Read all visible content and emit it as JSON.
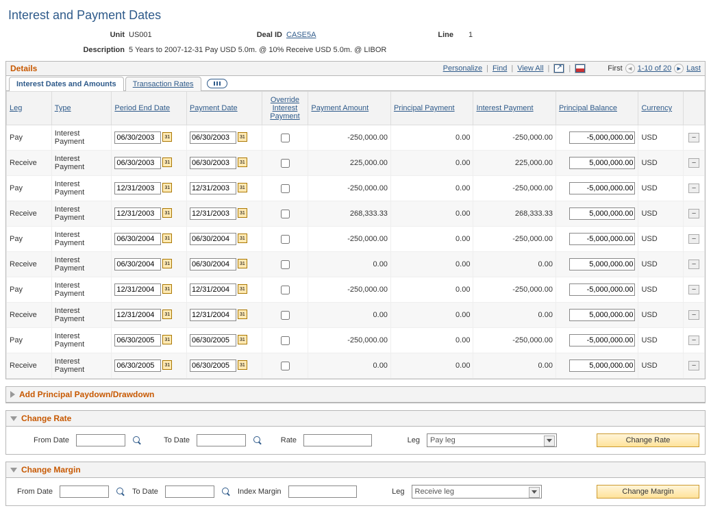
{
  "page": {
    "title": "Interest and Payment Dates"
  },
  "header": {
    "unit_label": "Unit",
    "unit": "US001",
    "deal_label": "Deal ID",
    "deal_id": "CASE5A",
    "line_label": "Line",
    "line": "1",
    "desc_label": "Description",
    "description": "5 Years to 2007-12-31 Pay USD 5.0m. @ 10% Receive USD 5.0m. @ LIBOR"
  },
  "grid": {
    "title": "Details",
    "actions": {
      "personalize": "Personalize",
      "find": "Find",
      "view_all": "View All",
      "first": "First",
      "range": "1-10 of 20",
      "last": "Last"
    },
    "tabs": {
      "t1": "Interest Dates and Amounts",
      "t2": "Transaction Rates"
    },
    "cols": {
      "leg": "Leg",
      "type": "Type",
      "period_end": "Period End Date",
      "payment_date": "Payment Date",
      "override": "Override Interest Payment",
      "payment_amount": "Payment Amount",
      "principal_payment": "Principal Payment",
      "interest_payment": "Interest Payment",
      "principal_balance": "Principal Balance",
      "currency": "Currency"
    },
    "rows": [
      {
        "leg": "Pay",
        "type": "Interest Payment",
        "period_end": "06/30/2003",
        "payment_date": "06/30/2003",
        "override": false,
        "payment_amount": "-250,000.00",
        "principal_payment": "0.00",
        "interest_payment": "-250,000.00",
        "principal_balance": "-5,000,000.00",
        "currency": "USD"
      },
      {
        "leg": "Receive",
        "type": "Interest Payment",
        "period_end": "06/30/2003",
        "payment_date": "06/30/2003",
        "override": false,
        "payment_amount": "225,000.00",
        "principal_payment": "0.00",
        "interest_payment": "225,000.00",
        "principal_balance": "5,000,000.00",
        "currency": "USD"
      },
      {
        "leg": "Pay",
        "type": "Interest Payment",
        "period_end": "12/31/2003",
        "payment_date": "12/31/2003",
        "override": false,
        "payment_amount": "-250,000.00",
        "principal_payment": "0.00",
        "interest_payment": "-250,000.00",
        "principal_balance": "-5,000,000.00",
        "currency": "USD"
      },
      {
        "leg": "Receive",
        "type": "Interest Payment",
        "period_end": "12/31/2003",
        "payment_date": "12/31/2003",
        "override": false,
        "payment_amount": "268,333.33",
        "principal_payment": "0.00",
        "interest_payment": "268,333.33",
        "principal_balance": "5,000,000.00",
        "currency": "USD"
      },
      {
        "leg": "Pay",
        "type": "Interest Payment",
        "period_end": "06/30/2004",
        "payment_date": "06/30/2004",
        "override": false,
        "payment_amount": "-250,000.00",
        "principal_payment": "0.00",
        "interest_payment": "-250,000.00",
        "principal_balance": "-5,000,000.00",
        "currency": "USD"
      },
      {
        "leg": "Receive",
        "type": "Interest Payment",
        "period_end": "06/30/2004",
        "payment_date": "06/30/2004",
        "override": false,
        "payment_amount": "0.00",
        "principal_payment": "0.00",
        "interest_payment": "0.00",
        "principal_balance": "5,000,000.00",
        "currency": "USD"
      },
      {
        "leg": "Pay",
        "type": "Interest Payment",
        "period_end": "12/31/2004",
        "payment_date": "12/31/2004",
        "override": false,
        "payment_amount": "-250,000.00",
        "principal_payment": "0.00",
        "interest_payment": "-250,000.00",
        "principal_balance": "-5,000,000.00",
        "currency": "USD"
      },
      {
        "leg": "Receive",
        "type": "Interest Payment",
        "period_end": "12/31/2004",
        "payment_date": "12/31/2004",
        "override": false,
        "payment_amount": "0.00",
        "principal_payment": "0.00",
        "interest_payment": "0.00",
        "principal_balance": "5,000,000.00",
        "currency": "USD"
      },
      {
        "leg": "Pay",
        "type": "Interest Payment",
        "period_end": "06/30/2005",
        "payment_date": "06/30/2005",
        "override": false,
        "payment_amount": "-250,000.00",
        "principal_payment": "0.00",
        "interest_payment": "-250,000.00",
        "principal_balance": "-5,000,000.00",
        "currency": "USD"
      },
      {
        "leg": "Receive",
        "type": "Interest Payment",
        "period_end": "06/30/2005",
        "payment_date": "06/30/2005",
        "override": false,
        "payment_amount": "0.00",
        "principal_payment": "0.00",
        "interest_payment": "0.00",
        "principal_balance": "5,000,000.00",
        "currency": "USD"
      }
    ]
  },
  "sections": {
    "paydown": {
      "title": "Add Principal Paydown/Drawdown"
    },
    "change_rate": {
      "title": "Change Rate",
      "from_label": "From Date",
      "to_label": "To Date",
      "rate_label": "Rate",
      "leg_label": "Leg",
      "leg_value": "Pay leg",
      "button": "Change Rate"
    },
    "change_margin": {
      "title": "Change Margin",
      "from_label": "From Date",
      "to_label": "To Date",
      "margin_label": "Index Margin",
      "leg_label": "Leg",
      "leg_value": "Receive leg",
      "button": "Change Margin"
    }
  }
}
